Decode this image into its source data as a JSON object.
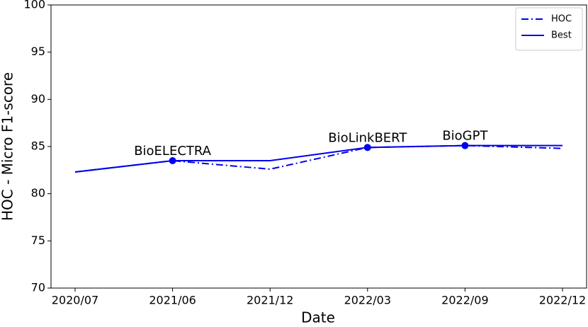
{
  "chart_data": {
    "type": "line",
    "x_label": "Date",
    "y_label": "HOC - Micro F1-score",
    "categories": [
      "2020/07",
      "2021/06",
      "2021/12",
      "2022/03",
      "2022/09",
      "2022/12"
    ],
    "series": [
      {
        "name": "HOC",
        "color": "#0000ee",
        "style": "dashdot",
        "values": [
          82.3,
          83.5,
          82.6,
          84.9,
          85.1,
          84.8
        ]
      },
      {
        "name": "Best",
        "color": "#0000ee",
        "style": "solid",
        "values": [
          82.3,
          83.5,
          83.5,
          84.9,
          85.1,
          85.1
        ]
      }
    ],
    "annotations": [
      {
        "text": "BioELECTRA",
        "x": "2021/06",
        "y": 83.5
      },
      {
        "text": "BioLinkBERT",
        "x": "2022/03",
        "y": 84.9
      },
      {
        "text": "BioGPT",
        "x": "2022/09",
        "y": 85.1
      }
    ],
    "ylim": [
      70,
      100
    ],
    "yticks": [
      70,
      75,
      80,
      85,
      90,
      95,
      100
    ],
    "legend": "upper right"
  }
}
